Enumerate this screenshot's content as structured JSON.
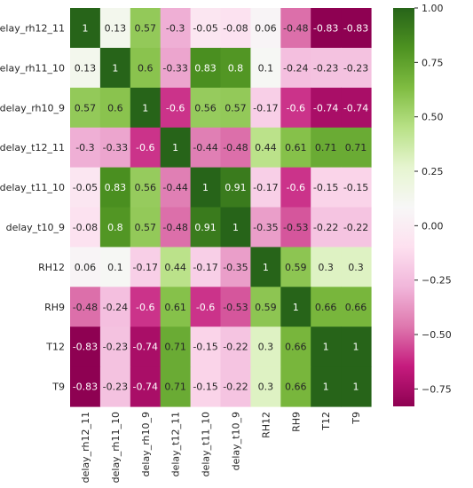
{
  "chart_data": {
    "type": "heatmap",
    "title": "",
    "xlabel": "",
    "ylabel": "",
    "rows": [
      "delay_rh12_11",
      "delay_rh11_10",
      "delay_rh10_9",
      "delay_t12_11",
      "delay_t11_10",
      "delay_t10_9",
      "RH12",
      "RH9",
      "T12",
      "T9"
    ],
    "columns": [
      "delay_rh12_11",
      "delay_rh11_10",
      "delay_rh10_9",
      "delay_t12_11",
      "delay_t11_10",
      "delay_t10_9",
      "RH12",
      "RH9",
      "T12",
      "T9"
    ],
    "values": [
      [
        1,
        0.13,
        0.57,
        -0.3,
        -0.05,
        -0.08,
        0.06,
        -0.48,
        -0.83,
        -0.83
      ],
      [
        0.13,
        1,
        0.6,
        -0.33,
        0.83,
        0.8,
        0.1,
        -0.24,
        -0.23,
        -0.23
      ],
      [
        0.57,
        0.6,
        1,
        -0.6,
        0.56,
        0.57,
        -0.17,
        -0.6,
        -0.74,
        -0.74
      ],
      [
        -0.3,
        -0.33,
        -0.6,
        1,
        -0.44,
        -0.48,
        0.44,
        0.61,
        0.71,
        0.71
      ],
      [
        -0.05,
        0.83,
        0.56,
        -0.44,
        1,
        0.91,
        -0.17,
        -0.6,
        -0.15,
        -0.15
      ],
      [
        -0.08,
        0.8,
        0.57,
        -0.48,
        0.91,
        1,
        -0.35,
        -0.53,
        -0.22,
        -0.22
      ],
      [
        0.06,
        0.1,
        -0.17,
        0.44,
        -0.17,
        -0.35,
        1,
        0.59,
        0.3,
        0.3
      ],
      [
        -0.48,
        -0.24,
        -0.6,
        0.61,
        -0.6,
        -0.53,
        0.59,
        1,
        0.66,
        0.66
      ],
      [
        -0.83,
        -0.23,
        -0.74,
        0.71,
        -0.15,
        -0.22,
        0.3,
        0.66,
        1,
        1
      ],
      [
        -0.83,
        -0.23,
        -0.74,
        0.71,
        -0.15,
        -0.22,
        0.3,
        0.66,
        1,
        1
      ]
    ],
    "colormap": "PiYG",
    "vmin": -0.83,
    "vmax": 1.0,
    "colorbar_ticks": [
      1.0,
      0.75,
      0.5,
      0.25,
      0.0,
      -0.25,
      -0.5,
      -0.75
    ],
    "colorbar_tick_labels": [
      "1.00",
      "0.75",
      "0.50",
      "0.25",
      "0.00",
      "−0.25",
      "−0.50",
      "−0.75"
    ],
    "annotate": true,
    "grid": false,
    "legend": "colorbar-right"
  }
}
